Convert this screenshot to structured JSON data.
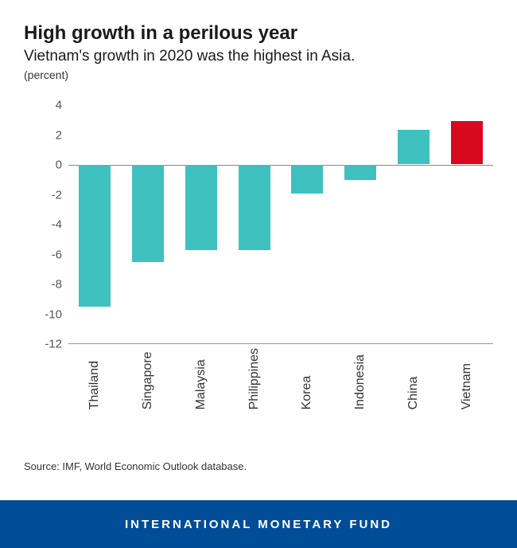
{
  "header": {
    "title": "High growth in a perilous year",
    "subtitle": "Vietnam's growth in 2020 was the highest in Asia.",
    "unit": "(percent)"
  },
  "chart": {
    "type": "bar",
    "ylim_min": -12,
    "ylim_max": 4,
    "ytick_step": 2,
    "yticks": [
      4,
      2,
      0,
      -2,
      -4,
      -6,
      -8,
      -10,
      -12
    ],
    "default_bar_color": "#3fc1c0",
    "highlight_bar_color": "#d6091f",
    "axis_color": "#888888",
    "tick_font_color": "#555555",
    "tick_fontsize": 15,
    "xlabel_fontsize": 16,
    "background_color": "#ffffff",
    "categories": [
      "Thailand",
      "Singapore",
      "Malaysia",
      "Philippines",
      "Korea",
      "Indonesia",
      "China",
      "Vietnam"
    ],
    "values": [
      -9.5,
      -6.5,
      -5.7,
      -5.7,
      -1.9,
      -1.0,
      2.3,
      2.9
    ],
    "highlight_index": 7
  },
  "source": "Source: IMF, World Economic Outlook database.",
  "footer": {
    "org": "INTERNATIONAL MONETARY FUND",
    "bg_color": "#004c97",
    "text_color": "#ffffff"
  }
}
